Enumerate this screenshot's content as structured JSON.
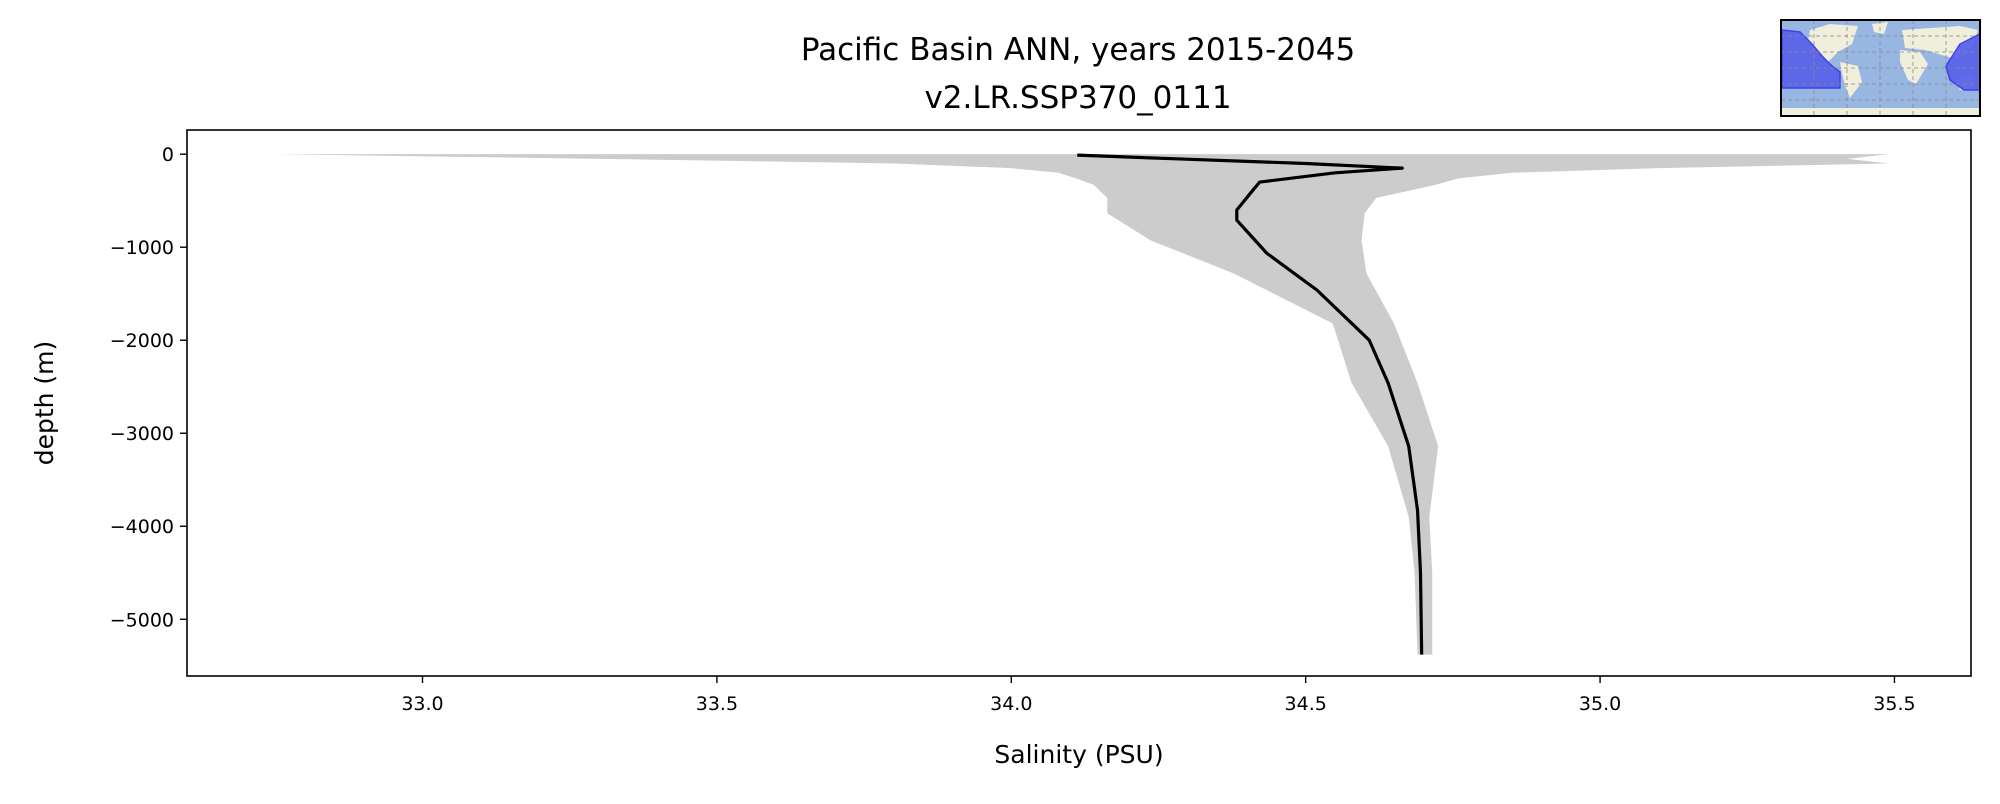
{
  "chart_data": {
    "type": "line",
    "title": "Pacific Basin ANN, years 2015-2045",
    "subtitle": "v2.LR.SSP370_0111",
    "xlabel": "Salinity (PSU)",
    "ylabel": "depth (m)",
    "xlim": [
      32.6,
      35.63
    ],
    "ylim": [
      -5610,
      260
    ],
    "xticks": [
      33.0,
      33.5,
      34.0,
      34.5,
      35.0,
      35.5
    ],
    "xtick_labels": [
      "33.0",
      "33.5",
      "34.0",
      "34.5",
      "35.0",
      "35.5"
    ],
    "yticks": [
      0,
      -1000,
      -2000,
      -3000,
      -4000,
      -5000
    ],
    "ytick_labels": [
      "0",
      "−1000",
      "−2000",
      "−3000",
      "−4000",
      "−5000"
    ],
    "grid": false,
    "mean": {
      "color": "#000000",
      "depth": [
        -10,
        -50,
        -100,
        -150,
        -200,
        -300,
        -390,
        -600,
        -710,
        -1065,
        -1460,
        -2000,
        -2460,
        -3140,
        -3830,
        -4500,
        -5380
      ],
      "salinity": [
        34.112,
        34.28,
        34.5,
        34.664,
        34.55,
        34.422,
        34.41,
        34.383,
        34.383,
        34.434,
        34.519,
        34.608,
        34.64,
        34.675,
        34.69,
        34.695,
        34.697
      ]
    },
    "range": {
      "color": "#cccccc",
      "depth": [
        0,
        -50,
        -100,
        -150,
        -200,
        -260,
        -330,
        -470,
        -635,
        -925,
        -1280,
        -1820,
        -2460,
        -3140,
        -3900,
        -4500,
        -5380
      ],
      "min": [
        32.75,
        33.3,
        33.8,
        34.0,
        34.08,
        34.11,
        34.14,
        34.163,
        34.163,
        34.236,
        34.377,
        34.546,
        34.578,
        34.64,
        34.675,
        34.685,
        34.69
      ],
      "max": [
        35.49,
        35.42,
        35.49,
        35.1,
        34.85,
        34.76,
        34.72,
        34.62,
        34.6,
        34.595,
        34.603,
        34.65,
        34.69,
        34.725,
        34.71,
        34.715,
        34.715
      ]
    },
    "inset_map": {
      "ocean_color": "#98b6e2",
      "land_color": "#efefdb",
      "region_color": "#5a64ea"
    }
  }
}
